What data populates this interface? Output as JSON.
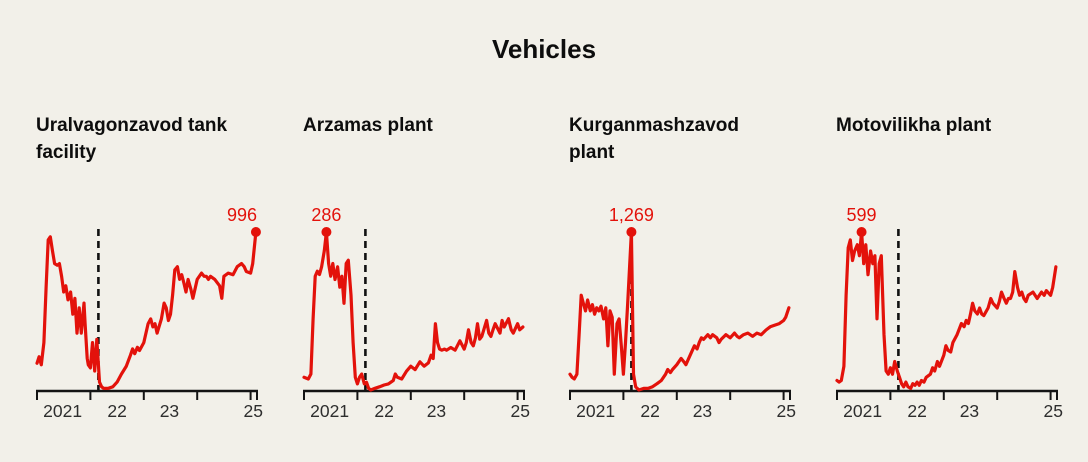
{
  "header": {
    "title": "Vehicles"
  },
  "chart_data": {
    "type": "line",
    "layout": "small-multiples",
    "x_domain": [
      2021.0,
      2025.12
    ],
    "event_line_x": 2022.15,
    "grid": false,
    "legend": false,
    "colors": {
      "line": "#e3120b",
      "peak_label": "#e3120b",
      "axis": "#141414",
      "event_line": "#111111",
      "background": "#f2f0e9",
      "title": "#0d0d0d",
      "tick_label": "#2e2e2e"
    },
    "axis": {
      "tick_years": [
        2021.0,
        2022.0,
        2023.0,
        2024.0,
        2025.0,
        2025.12
      ],
      "tick_labels": [
        {
          "text": "2021",
          "year": 2021.48
        },
        {
          "text": "22",
          "year": 2022.5
        },
        {
          "text": "23",
          "year": 2023.48
        },
        {
          "text": "25",
          "year": 2025.05
        }
      ]
    },
    "charts": [
      {
        "title": "Uralvagonzavod tank\nfacility",
        "peak_label": "996",
        "peak_value": 996,
        "x": [
          2021.0,
          2021.04,
          2021.08,
          2021.13,
          2021.17,
          2021.21,
          2021.25,
          2021.29,
          2021.33,
          2021.38,
          2021.42,
          2021.46,
          2021.5,
          2021.54,
          2021.58,
          2021.63,
          2021.67,
          2021.71,
          2021.75,
          2021.79,
          2021.83,
          2021.88,
          2021.9,
          2021.94,
          2021.96,
          2022.0,
          2022.04,
          2022.08,
          2022.12,
          2022.17,
          2022.21,
          2022.25,
          2022.33,
          2022.42,
          2022.5,
          2022.58,
          2022.67,
          2022.75,
          2022.79,
          2022.83,
          2022.88,
          2022.92,
          2023.0,
          2023.08,
          2023.13,
          2023.17,
          2023.21,
          2023.25,
          2023.33,
          2023.38,
          2023.42,
          2023.46,
          2023.5,
          2023.54,
          2023.58,
          2023.63,
          2023.67,
          2023.71,
          2023.75,
          2023.79,
          2023.83,
          2023.88,
          2023.92,
          2024.0,
          2024.08,
          2024.13,
          2024.17,
          2024.21,
          2024.25,
          2024.33,
          2024.42,
          2024.46,
          2024.5,
          2024.58,
          2024.67,
          2024.75,
          2024.83,
          2024.88,
          2024.92,
          2025.0,
          2025.04,
          2025.1
        ],
        "values": [
          169,
          209,
          159,
          299,
          647,
          946,
          966,
          876,
          797,
          787,
          797,
          717,
          618,
          657,
          568,
          618,
          478,
          578,
          359,
          518,
          359,
          548,
          418,
          199,
          159,
          139,
          299,
          120,
          319,
          50,
          20,
          10,
          10,
          20,
          50,
          100,
          149,
          219,
          259,
          229,
          269,
          249,
          299,
          418,
          448,
          398,
          418,
          359,
          448,
          548,
          518,
          438,
          478,
          598,
          757,
          777,
          697,
          727,
          677,
          618,
          697,
          637,
          578,
          697,
          737,
          717,
          717,
          697,
          717,
          697,
          657,
          578,
          717,
          737,
          727,
          777,
          797,
          777,
          747,
          737,
          797,
          996
        ]
      },
      {
        "title": "Arzamas plant",
        "peak_label": "286",
        "peak_value": 286,
        "x": [
          2021.0,
          2021.08,
          2021.13,
          2021.17,
          2021.21,
          2021.25,
          2021.29,
          2021.33,
          2021.38,
          2021.42,
          2021.46,
          2021.5,
          2021.54,
          2021.58,
          2021.63,
          2021.67,
          2021.71,
          2021.75,
          2021.79,
          2021.83,
          2021.88,
          2021.92,
          2021.96,
          2022.0,
          2022.04,
          2022.08,
          2022.13,
          2022.17,
          2022.21,
          2022.25,
          2022.33,
          2022.42,
          2022.5,
          2022.58,
          2022.67,
          2022.71,
          2022.75,
          2022.83,
          2022.92,
          2023.0,
          2023.08,
          2023.17,
          2023.25,
          2023.33,
          2023.38,
          2023.42,
          2023.46,
          2023.5,
          2023.54,
          2023.58,
          2023.63,
          2023.67,
          2023.75,
          2023.83,
          2023.92,
          2024.0,
          2024.04,
          2024.08,
          2024.13,
          2024.17,
          2024.21,
          2024.25,
          2024.29,
          2024.33,
          2024.42,
          2024.46,
          2024.5,
          2024.54,
          2024.58,
          2024.67,
          2024.71,
          2024.75,
          2024.83,
          2024.88,
          2024.92,
          2025.0,
          2025.04,
          2025.1
        ],
        "values": [
          23,
          20,
          29,
          129,
          206,
          215,
          209,
          223,
          252,
          286,
          229,
          206,
          229,
          200,
          223,
          186,
          206,
          157,
          229,
          235,
          172,
          86,
          23,
          11,
          23,
          29,
          11,
          14,
          3,
          0,
          3,
          6,
          9,
          11,
          17,
          29,
          23,
          20,
          34,
          43,
          37,
          51,
          43,
          49,
          63,
          57,
          120,
          86,
          74,
          72,
          74,
          72,
          77,
          72,
          89,
          74,
          86,
          109,
          86,
          80,
          94,
          120,
          92,
          97,
          126,
          103,
          97,
          109,
          120,
          103,
          126,
          114,
          129,
          109,
          103,
          120,
          109,
          114
        ]
      },
      {
        "title": "Kurganmashzavod\nplant",
        "peak_label": "1,269",
        "peak_value": 1269,
        "x": [
          2021.0,
          2021.04,
          2021.08,
          2021.13,
          2021.17,
          2021.21,
          2021.25,
          2021.29,
          2021.33,
          2021.38,
          2021.42,
          2021.46,
          2021.5,
          2021.54,
          2021.58,
          2021.63,
          2021.67,
          2021.71,
          2021.75,
          2021.79,
          2021.83,
          2021.88,
          2021.92,
          2021.96,
          2022.0,
          2022.04,
          2022.08,
          2022.15,
          2022.19,
          2022.23,
          2022.29,
          2022.38,
          2022.46,
          2022.54,
          2022.63,
          2022.71,
          2022.79,
          2022.83,
          2022.88,
          2022.92,
          2023.0,
          2023.08,
          2023.13,
          2023.17,
          2023.25,
          2023.33,
          2023.38,
          2023.42,
          2023.46,
          2023.5,
          2023.58,
          2023.63,
          2023.67,
          2023.75,
          2023.79,
          2023.83,
          2023.92,
          2024.0,
          2024.08,
          2024.13,
          2024.17,
          2024.25,
          2024.33,
          2024.42,
          2024.5,
          2024.58,
          2024.67,
          2024.75,
          2024.83,
          2024.92,
          2025.0,
          2025.04,
          2025.1
        ],
        "values": [
          127,
          102,
          89,
          127,
          444,
          761,
          698,
          635,
          723,
          635,
          685,
          609,
          660,
          635,
          673,
          571,
          660,
          355,
          635,
          584,
          127,
          533,
          571,
          355,
          127,
          381,
          698,
          1269,
          127,
          25,
          0,
          13,
          13,
          25,
          51,
          76,
          127,
          165,
          140,
          165,
          203,
          254,
          228,
          203,
          279,
          355,
          330,
          381,
          419,
          406,
          444,
          419,
          444,
          419,
          381,
          406,
          444,
          419,
          457,
          431,
          419,
          444,
          457,
          431,
          457,
          444,
          482,
          508,
          520,
          533,
          558,
          584,
          660
        ]
      },
      {
        "title": "Motovilikha plant",
        "peak_label": "599",
        "peak_value": 599,
        "x": [
          2021.0,
          2021.04,
          2021.08,
          2021.13,
          2021.17,
          2021.21,
          2021.25,
          2021.29,
          2021.33,
          2021.38,
          2021.42,
          2021.46,
          2021.5,
          2021.54,
          2021.58,
          2021.63,
          2021.67,
          2021.71,
          2021.75,
          2021.79,
          2021.83,
          2021.88,
          2021.92,
          2021.96,
          2022.0,
          2022.04,
          2022.08,
          2022.13,
          2022.17,
          2022.21,
          2022.25,
          2022.29,
          2022.33,
          2022.38,
          2022.42,
          2022.46,
          2022.5,
          2022.54,
          2022.58,
          2022.63,
          2022.67,
          2022.75,
          2022.79,
          2022.83,
          2022.88,
          2022.92,
          2023.0,
          2023.04,
          2023.08,
          2023.13,
          2023.17,
          2023.25,
          2023.33,
          2023.38,
          2023.42,
          2023.46,
          2023.5,
          2023.54,
          2023.58,
          2023.63,
          2023.67,
          2023.71,
          2023.75,
          2023.83,
          2023.88,
          2023.92,
          2024.0,
          2024.04,
          2024.08,
          2024.13,
          2024.17,
          2024.21,
          2024.25,
          2024.29,
          2024.33,
          2024.38,
          2024.42,
          2024.46,
          2024.5,
          2024.54,
          2024.58,
          2024.67,
          2024.75,
          2024.83,
          2024.88,
          2024.92,
          2025.0,
          2025.04,
          2025.1
        ],
        "values": [
          36,
          30,
          36,
          90,
          359,
          539,
          569,
          491,
          527,
          551,
          509,
          599,
          479,
          551,
          437,
          527,
          479,
          509,
          270,
          479,
          509,
          210,
          72,
          60,
          84,
          60,
          108,
          72,
          48,
          24,
          12,
          30,
          12,
          6,
          24,
          18,
          30,
          18,
          36,
          30,
          48,
          60,
          84,
          72,
          108,
          90,
          132,
          168,
          150,
          144,
          180,
          210,
          252,
          240,
          264,
          252,
          288,
          329,
          300,
          288,
          311,
          288,
          282,
          311,
          347,
          329,
          311,
          335,
          371,
          347,
          329,
          347,
          347,
          371,
          449,
          389,
          359,
          371,
          347,
          335,
          359,
          371,
          347,
          371,
          359,
          377,
          359,
          389,
          467
        ]
      }
    ]
  }
}
